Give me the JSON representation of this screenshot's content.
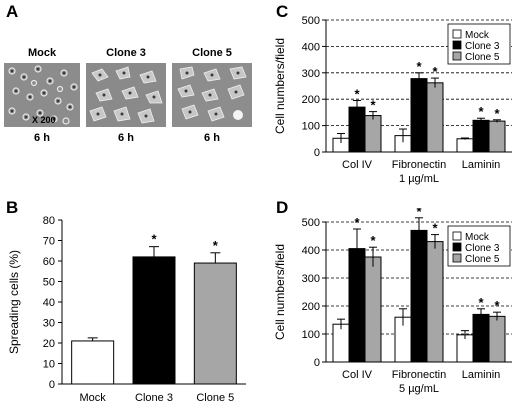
{
  "panel_A": {
    "letter": "A",
    "labels": [
      "Mock",
      "Clone 3",
      "Clone 5"
    ],
    "time_labels": [
      "6 h",
      "6 h",
      "6 h"
    ],
    "magnification": "X 200"
  },
  "panel_B": {
    "letter": "B"
  },
  "panel_C": {
    "letter": "C"
  },
  "panel_D": {
    "letter": "D"
  },
  "colors": {
    "mock": "#ffffff",
    "clone3": "#000000",
    "clone5": "#a6a6a6"
  },
  "chart_data": [
    {
      "id": "B",
      "type": "bar",
      "categories": [
        "Mock",
        "Clone 3",
        "Clone 5"
      ],
      "values": [
        21,
        62,
        59
      ],
      "errors": [
        1.5,
        5,
        5
      ],
      "significant": [
        false,
        true,
        true
      ],
      "ylabel": "Spreading cells (%)",
      "ylim": [
        0,
        80
      ],
      "yticks": [
        0,
        10,
        20,
        30,
        40,
        50,
        60,
        70,
        80
      ],
      "grid": false
    },
    {
      "id": "C",
      "type": "bar",
      "categories": [
        "Col IV",
        "Fibronectin",
        "Laminin"
      ],
      "category_sublabels": [
        "",
        "1 µg/mL",
        ""
      ],
      "ylabel": "Cell numbers/field",
      "ylim": [
        0,
        500
      ],
      "yticks": [
        0,
        100,
        200,
        300,
        400,
        500
      ],
      "grid": "dashed horizontal",
      "legend_position": "top-right",
      "series": [
        {
          "name": "Mock",
          "values": [
            52,
            62,
            50
          ],
          "errors": [
            18,
            25,
            3
          ],
          "significant": [
            false,
            false,
            false
          ]
        },
        {
          "name": "Clone 3",
          "values": [
            170,
            278,
            120
          ],
          "errors": [
            25,
            22,
            8
          ],
          "significant": [
            true,
            true,
            true
          ]
        },
        {
          "name": "Clone 5",
          "values": [
            138,
            262,
            117
          ],
          "errors": [
            15,
            18,
            5
          ],
          "significant": [
            true,
            true,
            true
          ]
        }
      ]
    },
    {
      "id": "D",
      "type": "bar",
      "categories": [
        "Col IV",
        "Fibronectin",
        "Laminin"
      ],
      "category_sublabels": [
        "",
        "5 µg/mL",
        ""
      ],
      "ylabel": "Cell numbers/field",
      "ylim": [
        0,
        500
      ],
      "yticks": [
        0,
        100,
        200,
        300,
        400,
        500
      ],
      "grid": "dashed horizontal",
      "legend_position": "top-right",
      "series": [
        {
          "name": "Mock",
          "values": [
            135,
            160,
            97
          ],
          "errors": [
            18,
            30,
            15
          ],
          "significant": [
            false,
            false,
            false
          ]
        },
        {
          "name": "Clone 3",
          "values": [
            405,
            470,
            170
          ],
          "errors": [
            70,
            45,
            20
          ],
          "significant": [
            true,
            true,
            true
          ]
        },
        {
          "name": "Clone 5",
          "values": [
            375,
            430,
            163
          ],
          "errors": [
            35,
            25,
            15
          ],
          "significant": [
            true,
            true,
            true
          ]
        }
      ]
    }
  ]
}
